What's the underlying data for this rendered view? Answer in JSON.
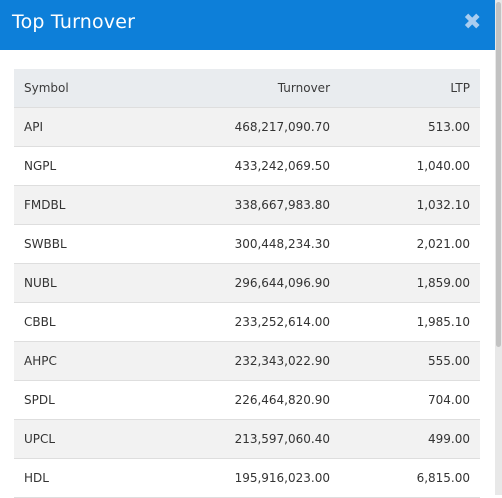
{
  "header": {
    "title": "Top Turnover",
    "close_glyph": "✖",
    "close_icon": "close-icon"
  },
  "table": {
    "columns": [
      "Symbol",
      "Turnover",
      "LTP"
    ],
    "rows": [
      {
        "symbol": "API",
        "turnover": "468,217,090.70",
        "ltp": "513.00"
      },
      {
        "symbol": "NGPL",
        "turnover": "433,242,069.50",
        "ltp": "1,040.00"
      },
      {
        "symbol": "FMDBL",
        "turnover": "338,667,983.80",
        "ltp": "1,032.10"
      },
      {
        "symbol": "SWBBL",
        "turnover": "300,448,234.30",
        "ltp": "2,021.00"
      },
      {
        "symbol": "NUBL",
        "turnover": "296,644,096.90",
        "ltp": "1,859.00"
      },
      {
        "symbol": "CBBL",
        "turnover": "233,252,614.00",
        "ltp": "1,985.10"
      },
      {
        "symbol": "AHPC",
        "turnover": "232,343,022.90",
        "ltp": "555.00"
      },
      {
        "symbol": "SPDL",
        "turnover": "226,464,820.90",
        "ltp": "704.00"
      },
      {
        "symbol": "UPCL",
        "turnover": "213,597,060.40",
        "ltp": "499.00"
      },
      {
        "symbol": "HDL",
        "turnover": "195,916,023.00",
        "ltp": "6,815.00"
      }
    ]
  },
  "colors": {
    "header_bg": "#0d7fd9",
    "header_text": "#ffffff",
    "table_header_bg": "#e9ecef",
    "row_stripe": "#f2f2f2"
  }
}
